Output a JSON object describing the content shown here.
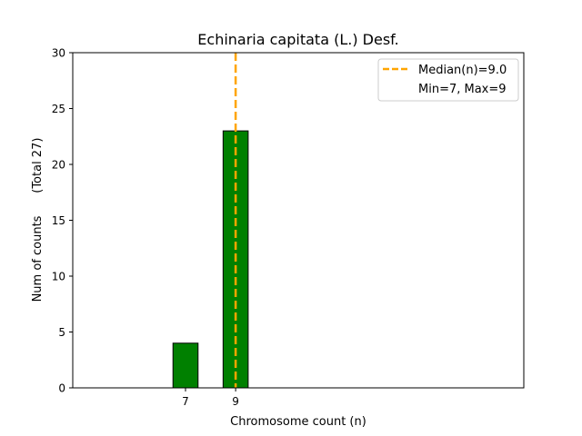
{
  "chart_data": {
    "type": "bar",
    "title": "Echinaria capitata (L.) Desf.",
    "xlabel": "Chromosome count (n)",
    "ylabel": "Num of counts      (Total 27)",
    "categories": [
      7,
      9
    ],
    "values": [
      4,
      23
    ],
    "bar_color": "#008000",
    "bar_edge_color": "#000000",
    "ylim": [
      0,
      30
    ],
    "y_ticks": [
      0,
      5,
      10,
      15,
      20,
      25,
      30
    ],
    "x_ticks": [
      7,
      9
    ],
    "median": 9.0,
    "median_color": "#FFA500",
    "legend": {
      "placement": "top-right",
      "entries": [
        "Median(n)=9.0",
        "Min=7, Max=9"
      ]
    },
    "grid": false
  }
}
